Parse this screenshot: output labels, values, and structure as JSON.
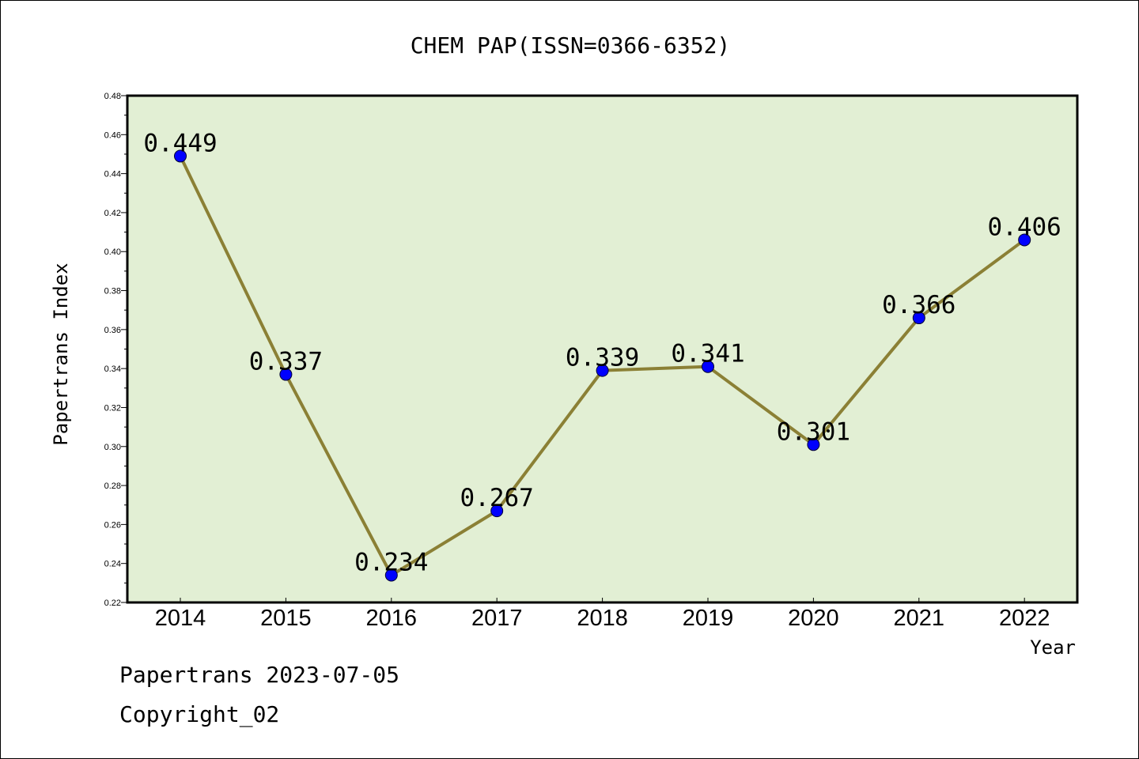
{
  "chart_data": {
    "type": "line",
    "title": "CHEM PAP(ISSN=0366-6352)",
    "xlabel": "Year",
    "ylabel": "Papertrans Index",
    "categories": [
      "2014",
      "2015",
      "2016",
      "2017",
      "2018",
      "2019",
      "2020",
      "2021",
      "2022"
    ],
    "series": [
      {
        "values": [
          0.449,
          0.337,
          0.234,
          0.267,
          0.339,
          0.341,
          0.301,
          0.366,
          0.406
        ],
        "data_labels": [
          "0.449",
          "0.337",
          "0.234",
          "0.267",
          "0.339",
          "0.341",
          "0.301",
          "0.366",
          "0.406"
        ]
      }
    ],
    "ylim": [
      0.22,
      0.48
    ],
    "yticks": [
      "0.22",
      "0.24",
      "0.26",
      "0.28",
      "0.30",
      "0.32",
      "0.34",
      "0.36",
      "0.38",
      "0.40",
      "0.42",
      "0.44",
      "0.46",
      "0.48"
    ],
    "grid": false,
    "legend": "none",
    "colors": {
      "plot_background": "#e2efd4",
      "line": "#8b8035",
      "marker": "#0000ff",
      "axis": "#000000"
    }
  },
  "footer": {
    "line1": "Papertrans 2023-07-05",
    "line2": "Copyright_02"
  }
}
